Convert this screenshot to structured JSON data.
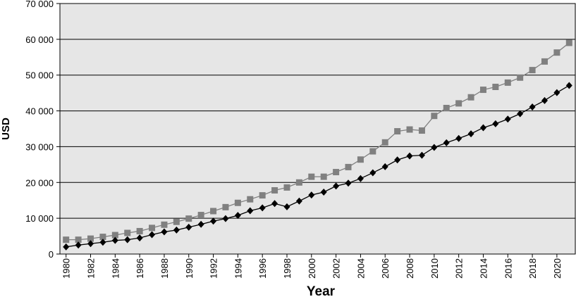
{
  "chart_data": {
    "type": "line",
    "x_label": "Year",
    "y_label": "USD",
    "x": [
      1980,
      1981,
      1982,
      1983,
      1984,
      1985,
      1986,
      1987,
      1988,
      1989,
      1990,
      1991,
      1992,
      1993,
      1994,
      1995,
      1996,
      1997,
      1998,
      1999,
      2000,
      2001,
      2002,
      2003,
      2004,
      2005,
      2006,
      2007,
      2008,
      2009,
      2010,
      2011,
      2012,
      2013,
      2014,
      2015,
      2016,
      2017,
      2018,
      2019,
      2020,
      2021
    ],
    "series": [
      {
        "color": "#808080",
        "marker": "square",
        "values": [
          4000,
          4000,
          4300,
          4800,
          5300,
          5900,
          6400,
          7300,
          8200,
          9000,
          9900,
          10900,
          12000,
          13100,
          14300,
          15300,
          16400,
          17800,
          18600,
          20000,
          21600,
          21600,
          22900,
          24300,
          26400,
          28700,
          31200,
          34300,
          34800,
          34500,
          38600,
          40800,
          42100,
          43800,
          45900,
          46700,
          47900,
          49300,
          51400,
          53800,
          56300,
          59000
        ]
      },
      {
        "color": "#000000",
        "marker": "diamond",
        "values": [
          2000,
          2500,
          2900,
          3300,
          3800,
          4000,
          4500,
          5400,
          6200,
          6700,
          7500,
          8300,
          9200,
          9900,
          10800,
          12100,
          12900,
          14100,
          13200,
          14800,
          16500,
          17300,
          19000,
          19800,
          21100,
          22700,
          24400,
          26300,
          27400,
          27600,
          29800,
          31100,
          32300,
          33600,
          35300,
          36400,
          37700,
          39200,
          41100,
          42900,
          45100,
          47100
        ]
      }
    ],
    "xlim": [
      1979.5,
      2021.5
    ],
    "xticks": [
      1980,
      1982,
      1984,
      1986,
      1988,
      1990,
      1992,
      1994,
      1996,
      1998,
      2000,
      2002,
      2004,
      2006,
      2008,
      2010,
      2012,
      2014,
      2016,
      2018,
      2020
    ],
    "ylim": [
      0,
      70000
    ],
    "yticks": [
      0,
      {
        "value": 10000,
        "label": "10 000"
      },
      {
        "value": 20000,
        "label": "20 000"
      },
      {
        "value": 30000,
        "label": "30 000"
      },
      {
        "value": 40000,
        "label": "40 000"
      },
      {
        "value": 50000,
        "label": "50 000"
      },
      {
        "value": 60000,
        "label": "60 000"
      },
      {
        "value": 70000,
        "label": "70 000"
      }
    ],
    "grid": true,
    "background": "#e6e6e6"
  }
}
